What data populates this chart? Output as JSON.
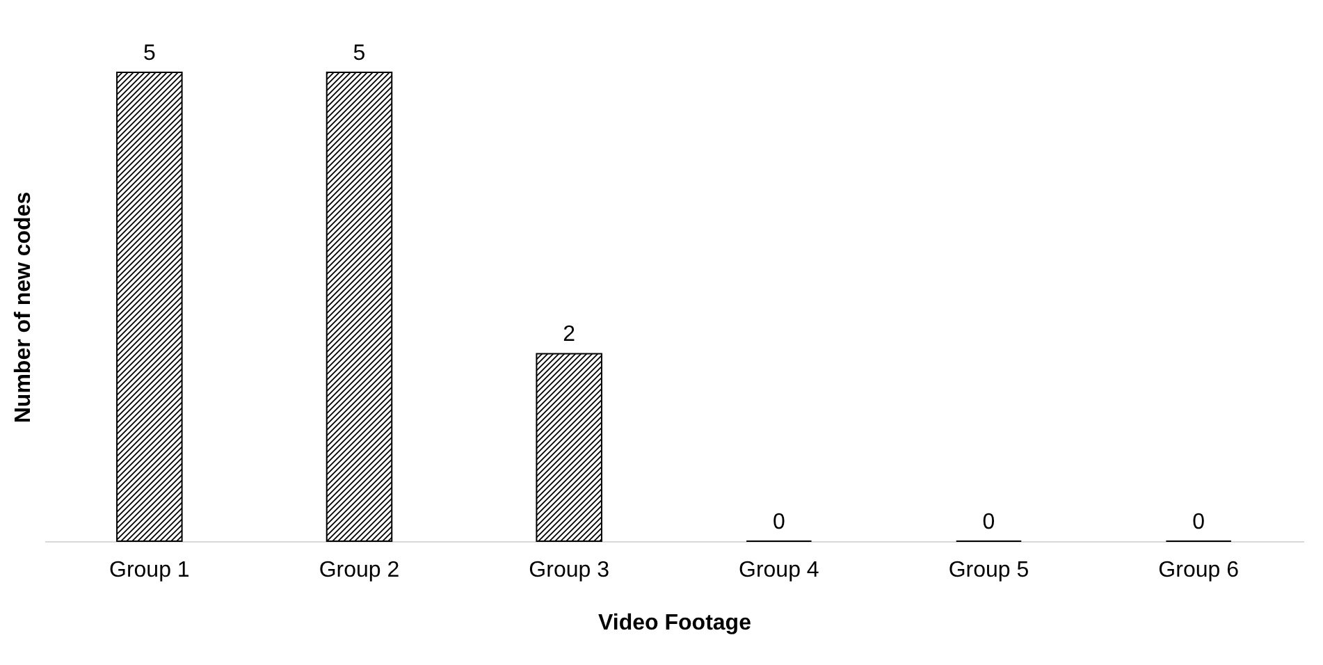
{
  "chart_data": {
    "type": "bar",
    "xlabel": "Video Footage",
    "ylabel": "Number of new codes",
    "categories": [
      "Group 1",
      "Group 2",
      "Group 3",
      "Group 4",
      "Group 5",
      "Group 6"
    ],
    "values": [
      5,
      5,
      2,
      0,
      0,
      0
    ],
    "color": "#000000",
    "data_labels": true
  }
}
